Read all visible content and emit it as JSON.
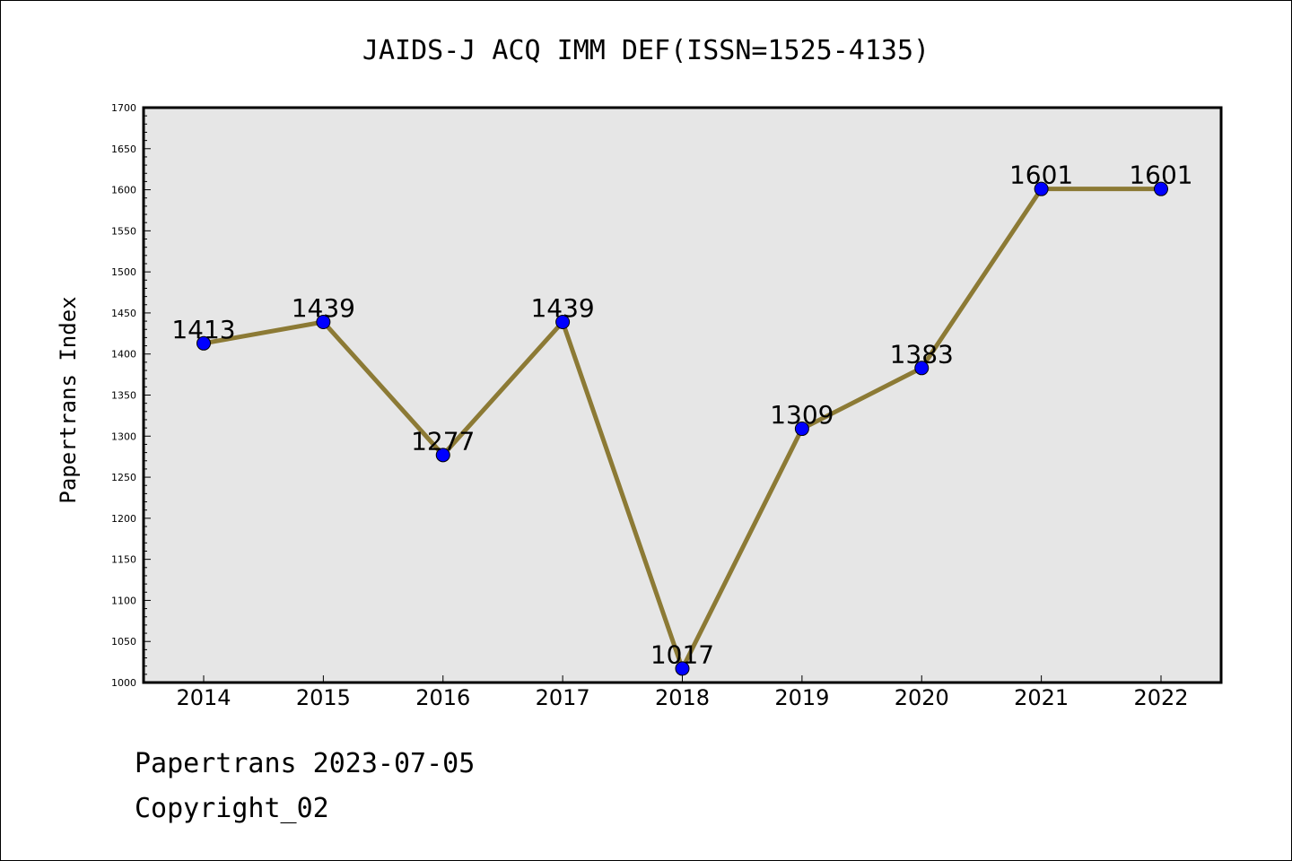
{
  "chart_data": {
    "type": "line",
    "title": "JAIDS-J ACQ IMM DEF(ISSN=1525-4135)",
    "xlabel": "",
    "ylabel": "Papertrans Index",
    "categories": [
      "2014",
      "2015",
      "2016",
      "2017",
      "2018",
      "2019",
      "2020",
      "2021",
      "2022"
    ],
    "values": [
      1413,
      1439,
      1277,
      1439,
      1017,
      1309,
      1383,
      1601,
      1601
    ],
    "ylim": [
      1000,
      1700
    ],
    "yticks": [
      1000,
      1050,
      1100,
      1150,
      1200,
      1250,
      1300,
      1350,
      1400,
      1450,
      1500,
      1550,
      1600,
      1650,
      1700
    ],
    "grid": false,
    "line_color": "#8c7a35",
    "marker_color": "#0000ff",
    "plot_background": "#e6e6e6"
  },
  "footer": {
    "line1": "Papertrans 2023-07-05",
    "line2": "Copyright_02"
  }
}
